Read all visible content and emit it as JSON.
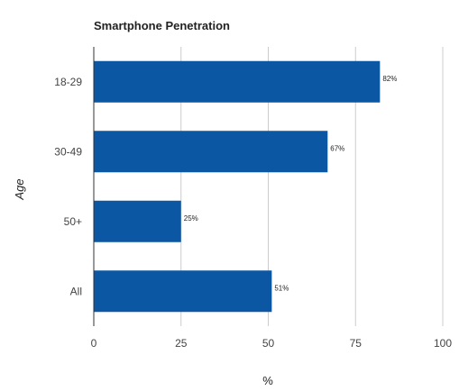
{
  "chart_data": {
    "type": "bar",
    "orientation": "horizontal",
    "title": "Smartphone Penetration",
    "xlabel": "%",
    "ylabel": "Age",
    "categories": [
      "18-29",
      "30-49",
      "50+",
      "All"
    ],
    "values": [
      82,
      67,
      25,
      51
    ],
    "data_labels": [
      "82%",
      "67%",
      "25%",
      "51%"
    ],
    "xlim": [
      0,
      100
    ],
    "x_ticks": [
      0,
      25,
      50,
      75,
      100
    ],
    "grid": true,
    "legend": "none",
    "bar_color": "#0b57a4",
    "grid_color": "#cccccc",
    "axis_color": "#333333"
  }
}
